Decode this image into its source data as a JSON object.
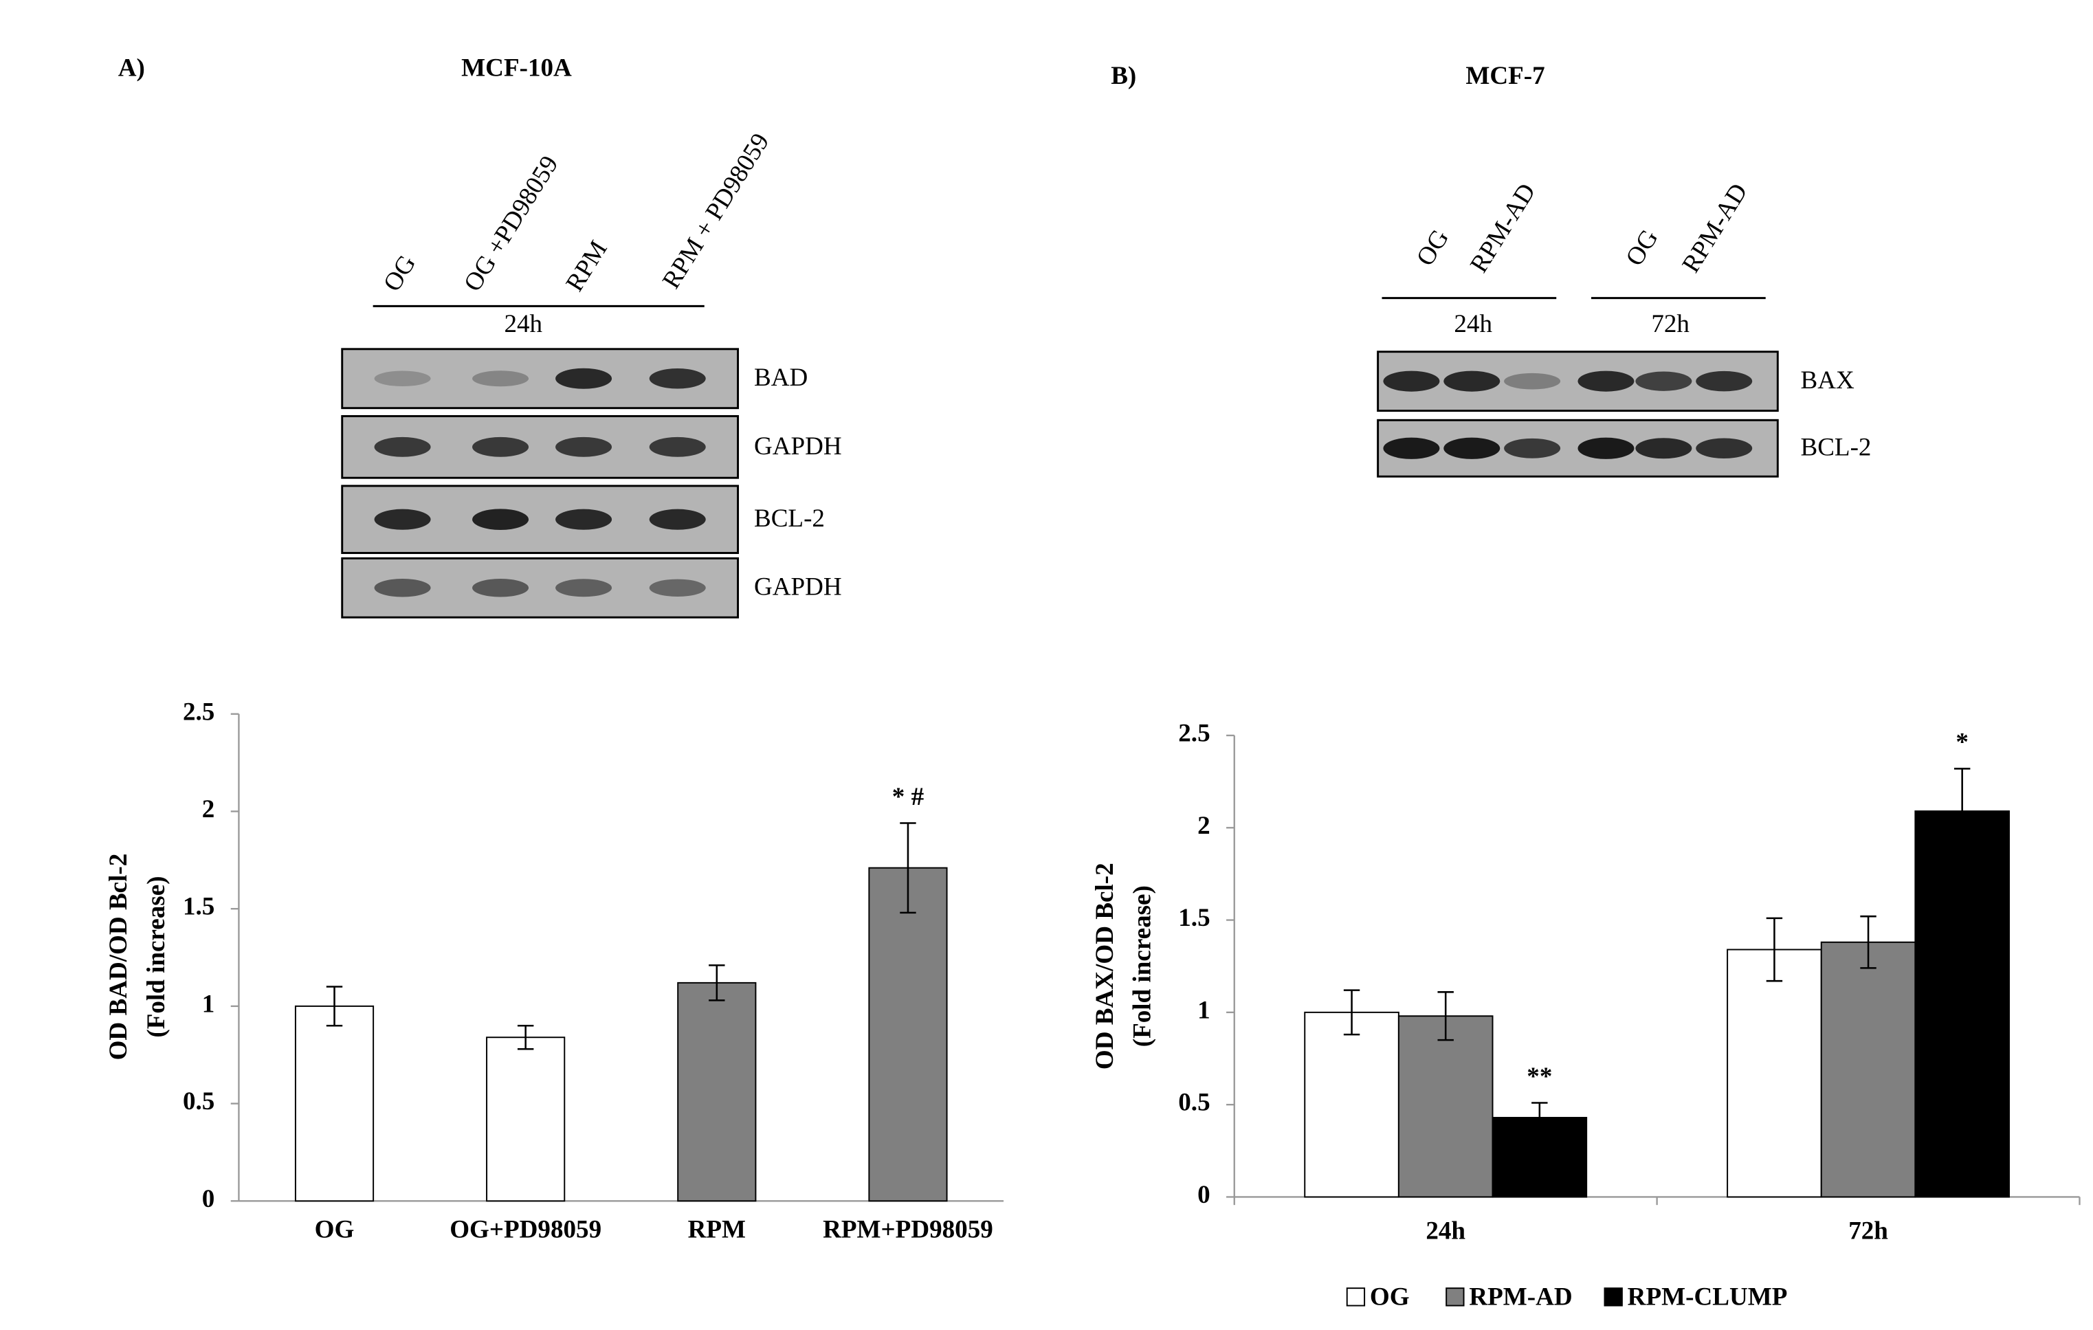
{
  "panels": [
    {
      "label": "A)",
      "title": "MCF-10A",
      "lanes": [
        "OG",
        "OG +PD98059",
        "RPM",
        "RPM + PD98059"
      ],
      "timepoints": [
        "24h"
      ],
      "bands": [
        "BAD",
        "GAPDH",
        "BCL-2",
        "GAPDH"
      ]
    },
    {
      "label": "B)",
      "title": "MCF-7",
      "lanes": [
        "OG",
        "RPM-AD",
        "OG",
        "RPM-AD"
      ],
      "timepoints": [
        "24h",
        "72h"
      ],
      "bands": [
        "BAX",
        "BCL-2"
      ]
    }
  ],
  "chart_data": [
    {
      "type": "bar",
      "ylabel": [
        "OD BAD/OD Bcl-2",
        "(Fold increase)"
      ],
      "categories": [
        "OG",
        "OG+PD98059",
        "RPM",
        "RPM+PD98059"
      ],
      "values": [
        1.0,
        0.84,
        1.12,
        1.71
      ],
      "errors": [
        0.1,
        0.06,
        0.09,
        0.23
      ],
      "colors": [
        "#ffffff",
        "#ffffff",
        "#808080",
        "#808080"
      ],
      "annotations": [
        null,
        null,
        null,
        "* #"
      ],
      "ylim": [
        0,
        2.5
      ],
      "yticks": [
        0,
        0.5,
        1,
        1.5,
        2,
        2.5
      ]
    },
    {
      "type": "grouped_bar",
      "ylabel": [
        "OD BAX/OD Bcl-2",
        "(Fold increase)"
      ],
      "categories": [
        "24h",
        "72h"
      ],
      "series": [
        {
          "name": "OG",
          "color": "#ffffff",
          "values": [
            1.0,
            1.34
          ],
          "errors": [
            0.12,
            0.17
          ],
          "annotations": [
            null,
            null
          ]
        },
        {
          "name": "RPM-AD",
          "color": "#808080",
          "values": [
            0.98,
            1.38
          ],
          "errors": [
            0.13,
            0.14
          ],
          "annotations": [
            null,
            null
          ]
        },
        {
          "name": "RPM-CLUMP",
          "color": "#000000",
          "values": [
            0.43,
            2.09
          ],
          "errors": [
            0.08,
            0.23
          ],
          "annotations": [
            "**",
            "*"
          ]
        }
      ],
      "ylim": [
        0,
        2.5
      ],
      "yticks": [
        0,
        0.5,
        1,
        1.5,
        2,
        2.5
      ],
      "legend": "bottom"
    }
  ]
}
